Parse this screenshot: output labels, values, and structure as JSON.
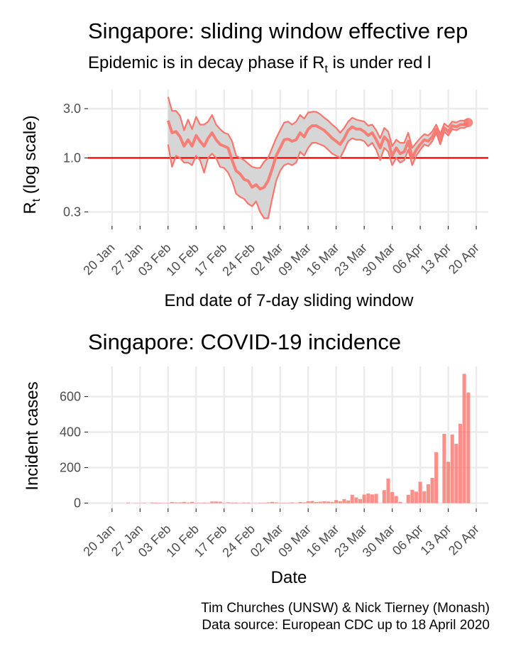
{
  "colors": {
    "series": "#F8766D",
    "ribbon": "#d6d6d6",
    "threshold": "#ff0000",
    "grid": "#ebebeb"
  },
  "caption": {
    "line1": "Tim Churches (UNSW) & Nick Tierney (Monash)",
    "line2": "Data source: European CDC up to 18 April 2020"
  },
  "chart_data": [
    {
      "type": "line",
      "title": "Singapore: sliding window effective rep",
      "subtitle_pre": "Epidemic is in decay phase if R",
      "subtitle_sub": "t",
      "subtitle_post": "  is under red l",
      "ylabel_main": "R",
      "ylabel_sub": "t",
      "ylabel_post": " (log scale)",
      "xlabel": "End date of 7-day sliding window",
      "yscale": "log",
      "ylim": [
        0.22,
        4.6
      ],
      "xlim": [
        "2020-01-14",
        "2020-04-23"
      ],
      "y_ticks": [
        {
          "value": 0.3,
          "label": "0.3"
        },
        {
          "value": 1.0,
          "label": "1.0"
        },
        {
          "value": 3.0,
          "label": "3.0"
        }
      ],
      "x_ticks": [
        {
          "date": "2020-01-20",
          "label": "20 Jan"
        },
        {
          "date": "2020-01-27",
          "label": "27 Jan"
        },
        {
          "date": "2020-02-03",
          "label": "03 Feb"
        },
        {
          "date": "2020-02-10",
          "label": "10 Feb"
        },
        {
          "date": "2020-02-17",
          "label": "17 Feb"
        },
        {
          "date": "2020-02-24",
          "label": "24 Feb"
        },
        {
          "date": "2020-03-02",
          "label": "02 Mar"
        },
        {
          "date": "2020-03-09",
          "label": "09 Mar"
        },
        {
          "date": "2020-03-16",
          "label": "16 Mar"
        },
        {
          "date": "2020-03-23",
          "label": "23 Mar"
        },
        {
          "date": "2020-03-30",
          "label": "30 Mar"
        },
        {
          "date": "2020-04-06",
          "label": "06 Apr"
        },
        {
          "date": "2020-04-13",
          "label": "13 Apr"
        },
        {
          "date": "2020-04-20",
          "label": "20 Apr"
        }
      ],
      "threshold": 1.0,
      "series": [
        {
          "x": [
            "2020-02-03",
            "2020-02-04",
            "2020-02-05",
            "2020-02-06",
            "2020-02-07",
            "2020-02-08",
            "2020-02-09",
            "2020-02-10",
            "2020-02-11",
            "2020-02-12",
            "2020-02-13",
            "2020-02-14",
            "2020-02-15",
            "2020-02-16",
            "2020-02-17",
            "2020-02-18",
            "2020-02-19",
            "2020-02-20",
            "2020-02-21",
            "2020-02-22",
            "2020-02-23",
            "2020-02-24",
            "2020-02-25",
            "2020-02-26",
            "2020-02-27",
            "2020-02-28",
            "2020-02-29",
            "2020-03-01",
            "2020-03-02",
            "2020-03-03",
            "2020-03-04",
            "2020-03-05",
            "2020-03-06",
            "2020-03-07",
            "2020-03-08",
            "2020-03-09",
            "2020-03-10",
            "2020-03-11",
            "2020-03-12",
            "2020-03-13",
            "2020-03-14",
            "2020-03-15",
            "2020-03-16",
            "2020-03-17",
            "2020-03-18",
            "2020-03-19",
            "2020-03-20",
            "2020-03-21",
            "2020-03-22",
            "2020-03-23",
            "2020-03-24",
            "2020-03-25",
            "2020-03-26",
            "2020-03-27",
            "2020-03-28",
            "2020-03-29",
            "2020-03-30",
            "2020-03-31",
            "2020-04-01",
            "2020-04-02",
            "2020-04-03",
            "2020-04-04",
            "2020-04-05",
            "2020-04-06",
            "2020-04-07",
            "2020-04-08",
            "2020-04-09",
            "2020-04-10",
            "2020-04-11",
            "2020-04-12",
            "2020-04-13",
            "2020-04-14",
            "2020-04-15",
            "2020-04-16",
            "2020-04-17",
            "2020-04-18"
          ],
          "mean": [
            2.3,
            1.75,
            1.8,
            1.6,
            1.3,
            1.5,
            1.3,
            1.65,
            1.45,
            1.3,
            1.55,
            1.75,
            1.5,
            1.35,
            1.3,
            1.25,
            0.95,
            0.75,
            0.7,
            0.62,
            0.6,
            0.52,
            0.55,
            0.5,
            0.52,
            0.6,
            0.78,
            1.05,
            1.25,
            1.5,
            1.52,
            1.45,
            1.5,
            1.75,
            1.6,
            1.9,
            2.05,
            2.05,
            1.95,
            1.85,
            1.7,
            1.55,
            1.45,
            1.35,
            1.55,
            1.85,
            2.0,
            1.9,
            1.9,
            1.8,
            1.65,
            1.75,
            1.5,
            1.25,
            1.6,
            1.45,
            1.05,
            1.25,
            1.1,
            1.15,
            1.45,
            1.0,
            1.2,
            1.35,
            1.5,
            1.45,
            1.6,
            1.9,
            1.5,
            1.95,
            1.8,
            2.05,
            2.0,
            2.1,
            2.1,
            2.2
          ],
          "lower": [
            1.35,
            0.82,
            1.05,
            1.0,
            0.9,
            0.9,
            0.85,
            1.05,
            0.95,
            0.72,
            1.0,
            1.1,
            1.0,
            0.82,
            0.8,
            0.72,
            0.6,
            0.45,
            0.42,
            0.4,
            0.36,
            0.34,
            0.38,
            0.3,
            0.26,
            0.26,
            0.4,
            0.6,
            0.75,
            0.85,
            0.88,
            0.85,
            0.9,
            1.15,
            1.05,
            1.25,
            1.4,
            1.4,
            1.35,
            1.3,
            1.2,
            1.1,
            1.05,
            1.0,
            1.2,
            1.45,
            1.55,
            1.5,
            1.5,
            1.45,
            1.3,
            1.4,
            1.2,
            0.95,
            1.25,
            1.15,
            0.85,
            1.0,
            0.9,
            0.95,
            1.2,
            0.85,
            1.05,
            1.2,
            1.35,
            1.3,
            1.45,
            1.75,
            1.35,
            1.8,
            1.65,
            1.9,
            1.85,
            1.95,
            1.95,
            2.05
          ],
          "upper": [
            3.9,
            2.85,
            2.85,
            2.55,
            1.85,
            2.35,
            1.9,
            2.5,
            2.1,
            2.1,
            2.25,
            2.6,
            2.1,
            1.9,
            1.75,
            1.7,
            1.45,
            1.05,
            1.0,
            0.95,
            0.88,
            0.82,
            0.8,
            0.8,
            0.92,
            1.0,
            1.25,
            1.55,
            1.85,
            2.2,
            2.25,
            2.1,
            2.25,
            2.6,
            2.4,
            2.75,
            2.8,
            2.8,
            2.65,
            2.45,
            2.3,
            2.1,
            1.95,
            1.75,
            1.95,
            2.25,
            2.45,
            2.35,
            2.3,
            2.25,
            2.05,
            2.1,
            1.85,
            1.55,
            1.95,
            1.8,
            1.3,
            1.5,
            1.4,
            1.4,
            1.75,
            1.25,
            1.4,
            1.55,
            1.7,
            1.65,
            1.8,
            2.1,
            1.7,
            2.15,
            2.0,
            2.25,
            2.2,
            2.3,
            2.3,
            2.4
          ]
        }
      ],
      "last_point": {
        "date": "2020-04-18",
        "value": 2.2
      }
    },
    {
      "type": "bar",
      "title": "Singapore: COVID-19 incidence",
      "xlabel": "Date",
      "ylabel": "Incident cases",
      "ylim": [
        -30,
        770
      ],
      "xlim": [
        "2020-01-14",
        "2020-04-23"
      ],
      "y_ticks": [
        {
          "value": 0,
          "label": "0"
        },
        {
          "value": 200,
          "label": "200"
        },
        {
          "value": 400,
          "label": "400"
        },
        {
          "value": 600,
          "label": "600"
        }
      ],
      "x_ticks": [
        {
          "date": "2020-01-20",
          "label": "20 Jan"
        },
        {
          "date": "2020-01-27",
          "label": "27 Jan"
        },
        {
          "date": "2020-02-03",
          "label": "03 Feb"
        },
        {
          "date": "2020-02-10",
          "label": "10 Feb"
        },
        {
          "date": "2020-02-17",
          "label": "17 Feb"
        },
        {
          "date": "2020-02-24",
          "label": "24 Feb"
        },
        {
          "date": "2020-03-02",
          "label": "02 Mar"
        },
        {
          "date": "2020-03-09",
          "label": "09 Mar"
        },
        {
          "date": "2020-03-16",
          "label": "16 Mar"
        },
        {
          "date": "2020-03-23",
          "label": "23 Mar"
        },
        {
          "date": "2020-03-30",
          "label": "30 Mar"
        },
        {
          "date": "2020-04-06",
          "label": "06 Apr"
        },
        {
          "date": "2020-04-13",
          "label": "13 Apr"
        },
        {
          "date": "2020-04-20",
          "label": "20 Apr"
        }
      ],
      "dates": [
        "2020-01-24",
        "2020-01-25",
        "2020-01-26",
        "2020-01-27",
        "2020-01-28",
        "2020-01-29",
        "2020-01-30",
        "2020-01-31",
        "2020-02-01",
        "2020-02-02",
        "2020-02-03",
        "2020-02-04",
        "2020-02-05",
        "2020-02-06",
        "2020-02-07",
        "2020-02-08",
        "2020-02-09",
        "2020-02-10",
        "2020-02-11",
        "2020-02-12",
        "2020-02-13",
        "2020-02-14",
        "2020-02-15",
        "2020-02-16",
        "2020-02-17",
        "2020-02-18",
        "2020-02-19",
        "2020-02-20",
        "2020-02-21",
        "2020-02-22",
        "2020-02-23",
        "2020-02-24",
        "2020-02-25",
        "2020-02-26",
        "2020-02-27",
        "2020-02-28",
        "2020-02-29",
        "2020-03-01",
        "2020-03-02",
        "2020-03-03",
        "2020-03-04",
        "2020-03-05",
        "2020-03-06",
        "2020-03-07",
        "2020-03-08",
        "2020-03-09",
        "2020-03-10",
        "2020-03-11",
        "2020-03-12",
        "2020-03-13",
        "2020-03-14",
        "2020-03-15",
        "2020-03-16",
        "2020-03-17",
        "2020-03-18",
        "2020-03-19",
        "2020-03-20",
        "2020-03-21",
        "2020-03-22",
        "2020-03-23",
        "2020-03-24",
        "2020-03-25",
        "2020-03-26",
        "2020-03-27",
        "2020-03-28",
        "2020-03-29",
        "2020-03-30",
        "2020-03-31",
        "2020-04-01",
        "2020-04-02",
        "2020-04-03",
        "2020-04-04",
        "2020-04-05",
        "2020-04-06",
        "2020-04-07",
        "2020-04-08",
        "2020-04-09",
        "2020-04-10",
        "2020-04-11",
        "2020-04-12",
        "2020-04-13",
        "2020-04-14",
        "2020-04-15",
        "2020-04-16",
        "2020-04-17",
        "2020-04-18"
      ],
      "values": [
        3,
        0,
        1,
        1,
        2,
        0,
        3,
        3,
        2,
        1,
        2,
        6,
        4,
        4,
        7,
        3,
        7,
        2,
        2,
        3,
        2,
        9,
        9,
        8,
        2,
        4,
        3,
        3,
        1,
        3,
        3,
        1,
        1,
        2,
        2,
        4,
        7,
        4,
        2,
        2,
        2,
        4,
        1,
        6,
        4,
        10,
        12,
        6,
        8,
        10,
        9,
        7,
        17,
        11,
        23,
        15,
        47,
        32,
        23,
        48,
        54,
        49,
        52,
        0,
        73,
        138,
        63,
        40,
        7,
        0,
        47,
        75,
        65,
        120,
        66,
        106,
        142,
        287,
        0,
        390,
        233,
        386,
        334,
        447,
        728,
        623
      ]
    }
  ]
}
